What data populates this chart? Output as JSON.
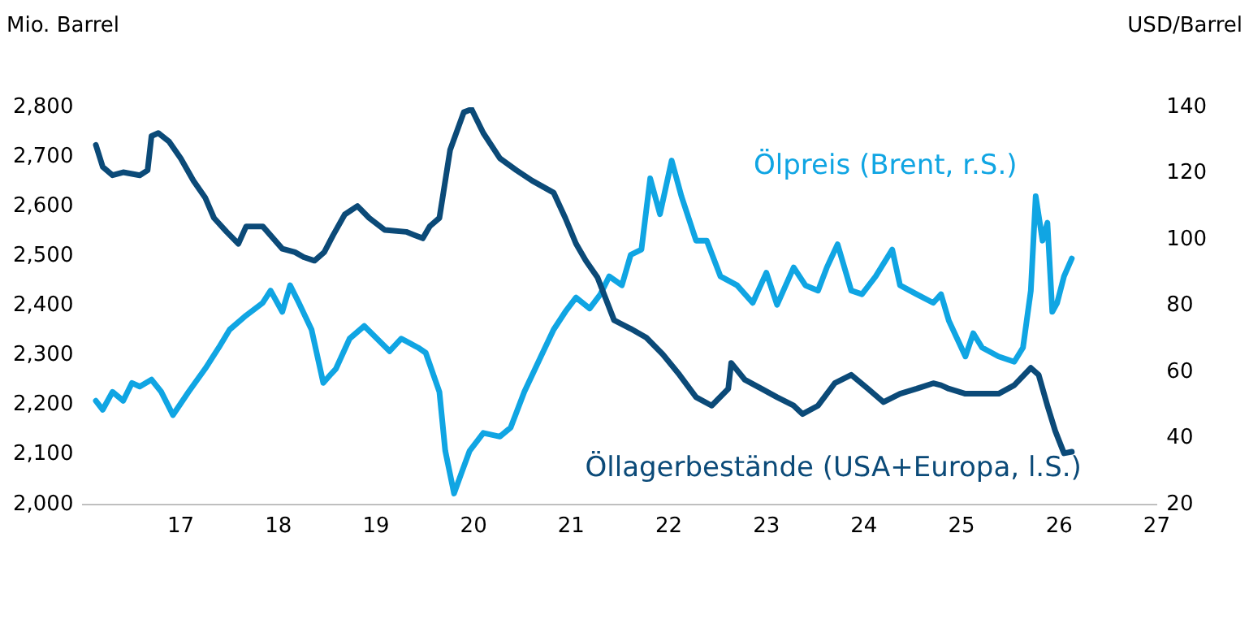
{
  "chart_data": {
    "type": "line",
    "ylabel": "Mio. Barrel",
    "y2label": "USD/Barrel",
    "xticks": [
      {
        "value": 2017,
        "label": "17"
      },
      {
        "value": 2018,
        "label": "18"
      },
      {
        "value": 2019,
        "label": "19"
      },
      {
        "value": 2020,
        "label": "20"
      },
      {
        "value": 2021,
        "label": "21"
      },
      {
        "value": 2022,
        "label": "22"
      },
      {
        "value": 2023,
        "label": "23"
      },
      {
        "value": 2024,
        "label": "24"
      },
      {
        "value": 2025,
        "label": "25"
      },
      {
        "value": 2026,
        "label": "26"
      },
      {
        "value": 2027,
        "label": "27"
      }
    ],
    "xlim": [
      2016,
      2027
    ],
    "ylim": [
      2000,
      2800
    ],
    "yticks": [
      {
        "value": 2000,
        "label": "2,000"
      },
      {
        "value": 2100,
        "label": "2,100"
      },
      {
        "value": 2200,
        "label": "2,200"
      },
      {
        "value": 2300,
        "label": "2,300"
      },
      {
        "value": 2400,
        "label": "2,400"
      },
      {
        "value": 2500,
        "label": "2,500"
      },
      {
        "value": 2600,
        "label": "2,600"
      },
      {
        "value": 2700,
        "label": "2,700"
      },
      {
        "value": 2800,
        "label": "2,800"
      }
    ],
    "y2lim": [
      20,
      140
    ],
    "y2ticks": [
      20,
      40,
      60,
      80,
      100,
      120,
      140
    ],
    "grid": false,
    "legend": false,
    "marker": "none",
    "line_style": "solid",
    "series": [
      {
        "name": "Öllagerbestände (USA+Europa, l.S.)",
        "color": "#0b4a78",
        "axis": "y",
        "x": [
          2016.13,
          2016.2,
          2016.3,
          2016.41,
          2016.58,
          2016.66,
          2016.7,
          2016.77,
          2016.88,
          2017.0,
          2017.13,
          2017.25,
          2017.34,
          2017.47,
          2017.59,
          2017.67,
          2017.84,
          2017.92,
          2018.04,
          2018.17,
          2018.26,
          2018.37,
          2018.47,
          2018.56,
          2018.68,
          2018.81,
          2018.93,
          2019.09,
          2019.31,
          2019.48,
          2019.55,
          2019.65,
          2019.76,
          2019.9,
          2019.98,
          2020.1,
          2020.27,
          2020.44,
          2020.6,
          2020.82,
          2020.94,
          2021.05,
          2021.15,
          2021.27,
          2021.44,
          2021.61,
          2021.77,
          2021.94,
          2022.11,
          2022.28,
          2022.44,
          2022.61,
          2022.64,
          2022.78,
          2022.95,
          2023.11,
          2023.28,
          2023.37,
          2023.53,
          2023.7,
          2023.87,
          2024.04,
          2024.2,
          2024.37,
          2024.54,
          2024.71,
          2024.79,
          2024.87,
          2025.04,
          2025.21,
          2025.38,
          2025.54,
          2025.71,
          2025.79,
          2025.88,
          2025.96,
          2026.05,
          2026.13
        ],
        "values": [
          2724,
          2680,
          2663,
          2669,
          2663,
          2673,
          2742,
          2748,
          2731,
          2697,
          2652,
          2618,
          2577,
          2549,
          2525,
          2560,
          2560,
          2542,
          2515,
          2508,
          2498,
          2491,
          2508,
          2542,
          2584,
          2601,
          2577,
          2553,
          2549,
          2536,
          2560,
          2577,
          2714,
          2790,
          2796,
          2748,
          2697,
          2673,
          2652,
          2628,
          2577,
          2525,
          2491,
          2457,
          2371,
          2354,
          2336,
          2302,
          2261,
          2216,
          2199,
          2233,
          2285,
          2251,
          2233,
          2216,
          2199,
          2182,
          2199,
          2244,
          2261,
          2233,
          2206,
          2223,
          2233,
          2244,
          2240,
          2233,
          2223,
          2223,
          2223,
          2240,
          2275,
          2261,
          2199,
          2148,
          2103,
          2106
        ]
      },
      {
        "name": "Ölpreis (Brent, r.S.)",
        "color": "#10a5e3",
        "axis": "y2",
        "x": [
          2016.13,
          2016.2,
          2016.3,
          2016.41,
          2016.5,
          2016.58,
          2016.7,
          2016.8,
          2016.92,
          2017.08,
          2017.25,
          2017.39,
          2017.5,
          2017.67,
          2017.84,
          2017.92,
          2018.04,
          2018.12,
          2018.21,
          2018.34,
          2018.46,
          2018.54,
          2018.59,
          2018.73,
          2018.88,
          2019.01,
          2019.14,
          2019.26,
          2019.43,
          2019.51,
          2019.65,
          2019.71,
          2019.8,
          2019.88,
          2019.96,
          2020.1,
          2020.27,
          2020.38,
          2020.52,
          2020.69,
          2020.82,
          2020.94,
          2021.05,
          2021.19,
          2021.3,
          2021.39,
          2021.52,
          2021.61,
          2021.72,
          2021.81,
          2021.91,
          2022.03,
          2022.13,
          2022.28,
          2022.39,
          2022.53,
          2022.7,
          2022.86,
          2023.0,
          2023.11,
          2023.28,
          2023.4,
          2023.53,
          2023.62,
          2023.73,
          2023.87,
          2023.98,
          2024.12,
          2024.29,
          2024.37,
          2024.54,
          2024.71,
          2024.79,
          2024.87,
          2025.04,
          2025.12,
          2025.21,
          2025.38,
          2025.54,
          2025.63,
          2025.71,
          2025.76,
          2025.83,
          2025.88,
          2025.93,
          2025.98,
          2026.05,
          2026.13
        ],
        "values": [
          51.3,
          48.6,
          54.0,
          51.3,
          56.7,
          55.6,
          57.7,
          54.0,
          47.0,
          54.0,
          61.0,
          67.4,
          72.8,
          77.1,
          80.9,
          84.6,
          78.2,
          86.2,
          80.9,
          72.8,
          56.7,
          59.4,
          61.0,
          70.1,
          73.9,
          70.1,
          66.3,
          70.1,
          67.4,
          65.8,
          54.0,
          36.2,
          23.3,
          29.8,
          36.2,
          41.6,
          40.5,
          43.2,
          54.0,
          64.7,
          72.8,
          78.2,
          82.5,
          79.2,
          83.5,
          88.9,
          86.2,
          95.4,
          97.0,
          118.5,
          107.7,
          123.9,
          113.1,
          99.7,
          99.7,
          88.9,
          86.2,
          80.9,
          90.0,
          80.3,
          91.6,
          86.2,
          84.6,
          91.6,
          98.6,
          84.6,
          83.5,
          88.9,
          97.0,
          86.2,
          83.5,
          80.9,
          83.5,
          75.5,
          64.7,
          71.7,
          67.4,
          64.7,
          63.1,
          67.4,
          84.6,
          113.1,
          99.7,
          105.1,
          78.2,
          80.9,
          88.9,
          94.3
        ]
      }
    ]
  }
}
